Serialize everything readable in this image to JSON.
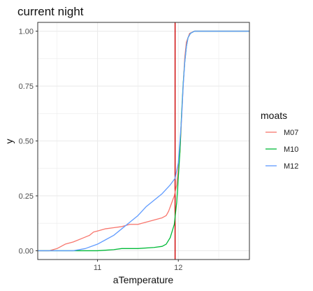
{
  "chart_data": {
    "type": "line",
    "title": "current night",
    "xlabel": "aTemperature",
    "ylabel": "y",
    "xlim": [
      10.26,
      12.88
    ],
    "ylim": [
      -0.04,
      1.04
    ],
    "x_ticks": [
      11,
      12
    ],
    "x_tick_labels": [
      "11",
      "12"
    ],
    "y_ticks": [
      0,
      0.25,
      0.5,
      0.75,
      1
    ],
    "y_tick_labels": [
      "0.00",
      "0.25",
      "0.50",
      "0.75",
      "1.00"
    ],
    "grid": true,
    "legend": {
      "title": "moats",
      "position": "right"
    },
    "vline": {
      "x": 11.96,
      "color": "#cc0000"
    },
    "series": [
      {
        "name": "M07",
        "color": "#F8766D",
        "x": [
          10.26,
          10.4,
          10.5,
          10.6,
          10.7,
          10.8,
          10.9,
          10.95,
          11.0,
          11.1,
          11.2,
          11.3,
          11.4,
          11.5,
          11.6,
          11.7,
          11.8,
          11.85,
          11.88,
          11.92,
          11.95,
          11.98,
          12.02,
          12.06,
          12.08,
          12.1,
          12.14,
          12.2,
          12.4,
          12.6,
          12.88
        ],
        "y": [
          0.0,
          0.0,
          0.01,
          0.03,
          0.04,
          0.055,
          0.07,
          0.085,
          0.09,
          0.1,
          0.105,
          0.11,
          0.12,
          0.12,
          0.13,
          0.14,
          0.15,
          0.16,
          0.18,
          0.22,
          0.25,
          0.3,
          0.45,
          0.75,
          0.88,
          0.95,
          0.99,
          1.0,
          1.0,
          1.0,
          1.0
        ]
      },
      {
        "name": "M10",
        "color": "#00BA38",
        "x": [
          10.26,
          10.8,
          11.0,
          11.2,
          11.3,
          11.5,
          11.7,
          11.8,
          11.85,
          11.9,
          11.95,
          11.98,
          12.02,
          12.04,
          12.06,
          12.08,
          12.1,
          12.12,
          12.15,
          12.2,
          12.4,
          12.6,
          12.88
        ],
        "y": [
          0.0,
          0.0,
          0.0,
          0.005,
          0.01,
          0.01,
          0.015,
          0.02,
          0.03,
          0.06,
          0.12,
          0.22,
          0.45,
          0.62,
          0.76,
          0.86,
          0.93,
          0.97,
          0.99,
          1.0,
          1.0,
          1.0,
          1.0
        ]
      },
      {
        "name": "M12",
        "color": "#619CFF",
        "x": [
          10.26,
          10.7,
          10.85,
          11.0,
          11.1,
          11.2,
          11.3,
          11.4,
          11.5,
          11.6,
          11.7,
          11.8,
          11.9,
          11.96,
          12.0,
          12.04,
          12.06,
          12.08,
          12.1,
          12.12,
          12.15,
          12.2,
          12.4,
          12.6,
          12.88
        ],
        "y": [
          0.0,
          0.0,
          0.01,
          0.03,
          0.05,
          0.07,
          0.1,
          0.13,
          0.16,
          0.2,
          0.23,
          0.26,
          0.3,
          0.33,
          0.4,
          0.6,
          0.75,
          0.86,
          0.93,
          0.97,
          0.99,
          1.0,
          1.0,
          1.0,
          1.0
        ]
      }
    ]
  }
}
